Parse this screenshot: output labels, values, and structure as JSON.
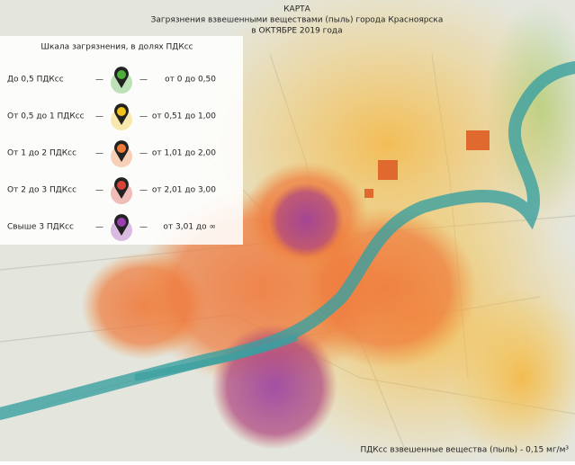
{
  "header": {
    "line1": "КАРТА",
    "line2": "Загрязнения взвешенными веществами (пыль) города Красноярска",
    "line3": "в ОКТЯБРЕ 2019 года"
  },
  "legend": {
    "title": "Шкала загрязнения, в долях ПДКсс",
    "separator": "—",
    "rows": [
      {
        "label": "До 0,5 ПДКсс",
        "range": "от 0 до 0,50",
        "color": "#4caf3a"
      },
      {
        "label": "От 0,5 до 1 ПДКсс",
        "range": "от 0,51 до 1,00",
        "color": "#f2c31a"
      },
      {
        "label": "От 1 до 2 ПДКсс",
        "range": "от 1,01 до 2,00",
        "color": "#f07a3a"
      },
      {
        "label": "От 2 до 3 ПДКсс",
        "range": "от 2,01 до 3,00",
        "color": "#d9443a"
      },
      {
        "label": "Свыше 3 ПДКсс",
        "range": "от 3,01 до ∞",
        "color": "#9b3fb0"
      }
    ]
  },
  "footer": "ПДКсс взвешенные вещества (пыль) - 0,15 мг/м³"
}
